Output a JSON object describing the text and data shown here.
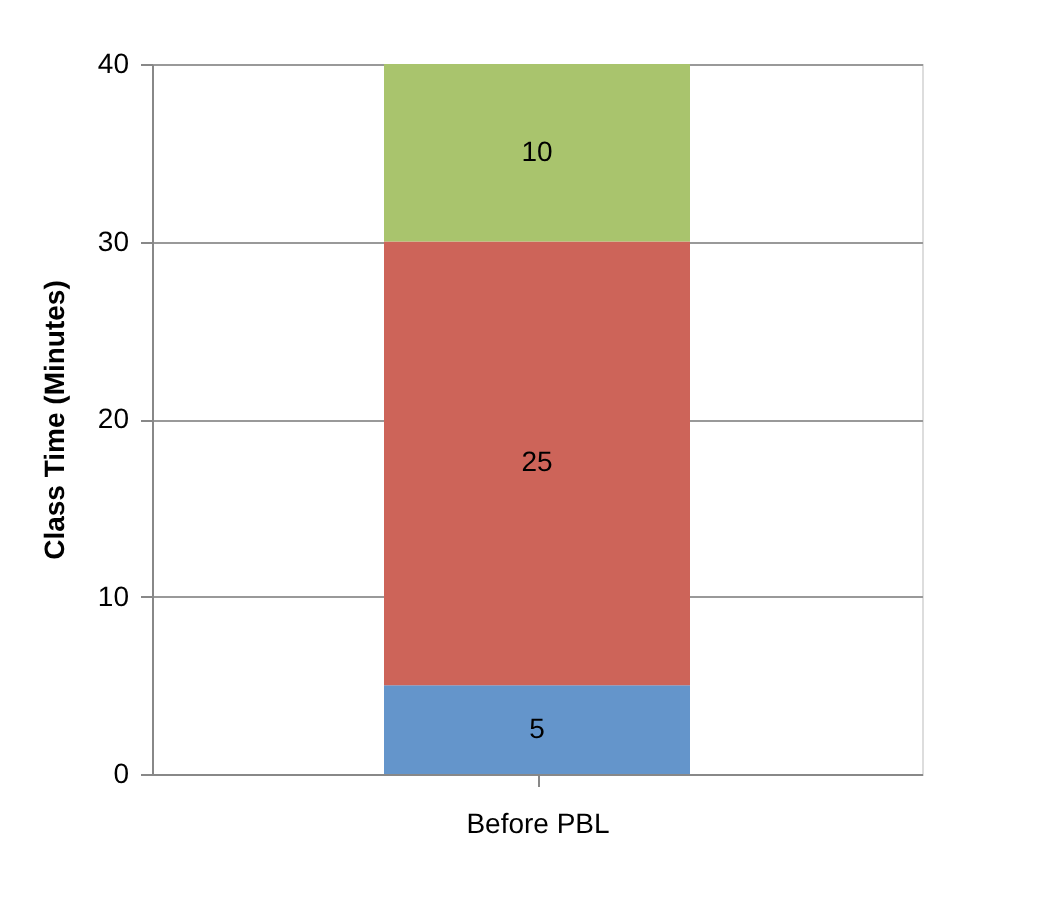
{
  "chart_data": {
    "type": "bar",
    "stacked": true,
    "categories": [
      "Before PBL"
    ],
    "series": [
      {
        "color": "#6495cb",
        "values": [
          5
        ]
      },
      {
        "color": "#cd6459",
        "values": [
          25
        ]
      },
      {
        "color": "#a9c46d",
        "values": [
          10
        ]
      }
    ],
    "ylabel": "Class Time (Minutes)",
    "ylim": [
      0,
      40
    ],
    "yticks": [
      0,
      10,
      20,
      30,
      40
    ],
    "grid": "y",
    "data_labels": true
  }
}
